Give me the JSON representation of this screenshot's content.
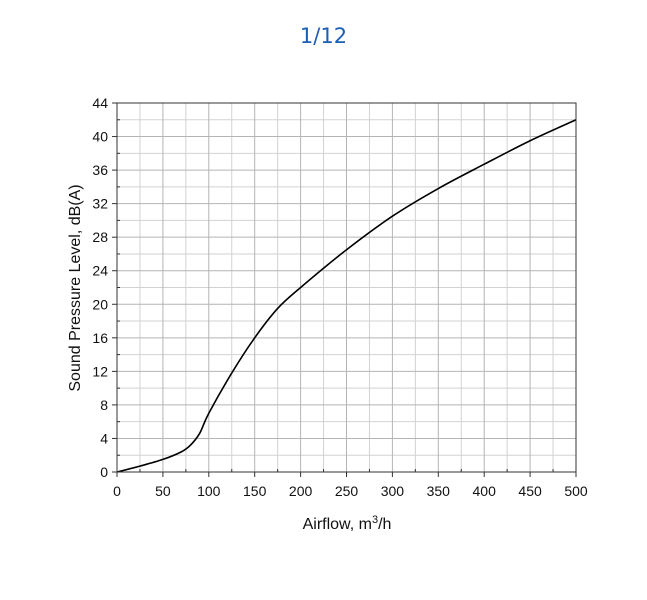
{
  "pager": {
    "counter": "1/12"
  },
  "chart_data": {
    "type": "line",
    "xlabel": "Airflow, m",
    "xlabel_superscript": "3",
    "xlabel_suffix": "/h",
    "ylabel": "Sound Pressure Level, dB(A)",
    "xlim": [
      0,
      500
    ],
    "ylim": [
      0,
      44
    ],
    "xticks": [
      0,
      50,
      100,
      150,
      200,
      250,
      300,
      350,
      400,
      450,
      500
    ],
    "yticks": [
      0,
      4,
      8,
      12,
      16,
      20,
      24,
      28,
      32,
      36,
      40,
      44
    ],
    "grid": true,
    "series": [
      {
        "color": "#000000",
        "x": [
          0,
          25,
          50,
          70,
          80,
          90,
          100,
          125,
          150,
          175,
          200,
          250,
          300,
          350,
          400,
          450,
          500
        ],
        "y": [
          0,
          0.7,
          1.5,
          2.4,
          3.2,
          4.6,
          7.0,
          11.8,
          16.0,
          19.5,
          22.0,
          26.5,
          30.5,
          33.8,
          36.7,
          39.5,
          42.0
        ]
      }
    ]
  }
}
